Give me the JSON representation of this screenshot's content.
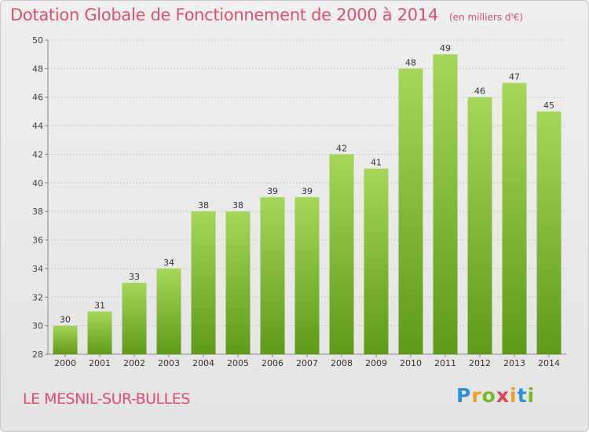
{
  "header": {
    "title": "Dotation Globale de Fonctionnement de 2000 à 2014",
    "unit": "(en milliers d'€)"
  },
  "footer": {
    "commune": "LE MESNIL-SUR-BULLES",
    "logo": "Proxiti"
  },
  "colors": {
    "title": "#e0506a",
    "bar_light": "#a6d65a",
    "bar_dark": "#5f9a1a",
    "logo_letters": [
      "#2f8fd8",
      "#f0a020",
      "#7ab829",
      "#e2445a",
      "#f0a020",
      "#2f8fd8",
      "#7ab829"
    ]
  },
  "chart_data": {
    "type": "bar",
    "title": "Dotation Globale de Fonctionnement de 2000 à 2014",
    "subtitle": "(en milliers d'€)",
    "xlabel": "",
    "ylabel": "",
    "categories": [
      "2000",
      "2001",
      "2002",
      "2003",
      "2004",
      "2005",
      "2006",
      "2007",
      "2008",
      "2009",
      "2010",
      "2011",
      "2012",
      "2013",
      "2014"
    ],
    "values": [
      30,
      31,
      33,
      34,
      38,
      38,
      39,
      39,
      42,
      41,
      48,
      49,
      46,
      47,
      45
    ],
    "ylim": [
      28,
      50
    ],
    "yticks": [
      28,
      30,
      32,
      34,
      36,
      38,
      40,
      42,
      44,
      46,
      48,
      50
    ],
    "grid": true,
    "data_labels": true
  }
}
